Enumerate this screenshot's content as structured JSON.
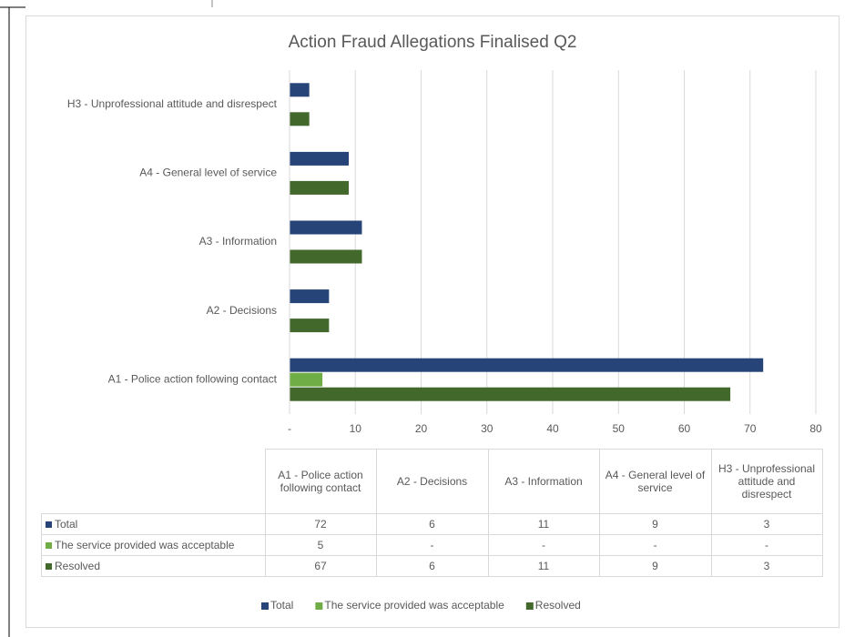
{
  "chart_data": {
    "type": "bar",
    "orientation": "horizontal",
    "title": "Action Fraud Allegations Finalised Q2",
    "categories": [
      "A1 - Police action following contact",
      "A2 - Decisions",
      "A3 - Information",
      "A4 - General level of service",
      "H3 - Unprofessional attitude and disrespect"
    ],
    "series": [
      {
        "name": "Total",
        "color": "#264478",
        "values": [
          72,
          6,
          11,
          9,
          3
        ]
      },
      {
        "name": "The service provided was acceptable",
        "color": "#70ad47",
        "values": [
          5,
          null,
          null,
          null,
          null
        ],
        "value_labels": [
          "5",
          "-",
          "-",
          "-",
          "-"
        ]
      },
      {
        "name": "Resolved",
        "color": "#43682b",
        "values": [
          67,
          6,
          11,
          9,
          3
        ]
      }
    ],
    "xlim": [
      0,
      80
    ],
    "xticks": [
      {
        "value": 0,
        "label": "-"
      },
      10,
      20,
      30,
      40,
      50,
      60,
      70,
      80
    ],
    "grid": true,
    "legend": "bottom",
    "data_table": true
  }
}
